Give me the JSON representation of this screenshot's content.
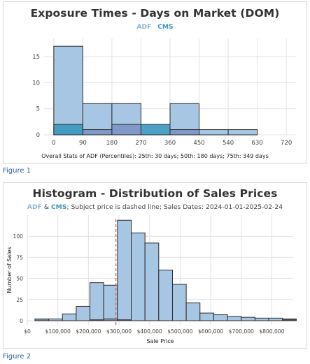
{
  "figure1": {
    "label": "Figure 1",
    "stats_text": "Overall Stats of ADF (Percentiles): 25th: 30 days; 50th: 180 days; 75th: 349 days"
  },
  "figure2": {
    "label": "Figure 2",
    "subtitle_rest": "; Subject price is dashed line; Sales Dates: 2024-01-01-2025-02-24",
    "subtitle_and": " & "
  },
  "colors": {
    "adf": "#a7c6e3",
    "cms": "#3a97bf",
    "overlap": "#7d94c4",
    "edge": "#2b2b2b",
    "grid": "#e2e2e2",
    "subject_line": "#d9534f"
  },
  "chart_data": [
    {
      "type": "bar",
      "title": "Exposure Times - Days on Market (DOM)",
      "legend": [
        "ADF",
        "CMS"
      ],
      "legend_position": "top-center",
      "xlabel": "",
      "ylabel": "",
      "xlim": [
        -30,
        750
      ],
      "ylim": [
        0,
        18.5
      ],
      "x_ticks": [
        0,
        90,
        180,
        270,
        360,
        450,
        540,
        630,
        720
      ],
      "y_ticks": [
        0,
        5,
        10,
        15
      ],
      "grid": true,
      "bin_width": 90,
      "series": [
        {
          "name": "ADF",
          "bin_starts": [
            0,
            90,
            180,
            270,
            360,
            450,
            540,
            630
          ],
          "values": [
            17,
            6,
            6,
            0,
            6,
            1,
            1,
            0
          ]
        },
        {
          "name": "CMS",
          "bin_starts": [
            0,
            90,
            180,
            270,
            360,
            450,
            540,
            630
          ],
          "values": [
            2,
            1,
            2,
            2,
            1,
            0,
            0,
            0
          ]
        }
      ]
    },
    {
      "type": "bar",
      "title": "Histogram - Distribution of Sales Prices",
      "legend": [
        "ADF",
        "CMS"
      ],
      "legend_position": "top-center",
      "xlabel": "Sale Price",
      "ylabel": "Number of Sales",
      "xlim": [
        0,
        870000
      ],
      "ylim": [
        -5,
        125
      ],
      "x_ticks": [
        0,
        100000,
        200000,
        300000,
        400000,
        500000,
        600000,
        700000,
        800000
      ],
      "x_tick_labels": [
        "$0",
        "$100,000",
        "$200,000",
        "$300,000",
        "$400,000",
        "$500,000",
        "$600,000",
        "$700,000",
        "$800,000"
      ],
      "y_ticks": [
        0,
        25,
        50,
        75,
        100
      ],
      "grid": true,
      "bin_width": 45000,
      "subject_price": 290000,
      "series": [
        {
          "name": "ADF",
          "bin_starts": [
            25000,
            70000,
            115000,
            160000,
            205000,
            250000,
            295000,
            340000,
            385000,
            430000,
            475000,
            520000,
            565000,
            610000,
            655000,
            700000,
            745000,
            790000,
            835000
          ],
          "values": [
            1,
            2,
            8,
            17,
            45,
            42,
            119,
            104,
            92,
            60,
            43,
            21,
            9,
            7,
            5,
            4,
            3,
            3,
            2
          ]
        },
        {
          "name": "CMS",
          "bin_starts": [
            25000,
            70000,
            115000,
            160000,
            205000,
            250000,
            295000,
            340000,
            385000,
            430000,
            475000,
            520000,
            565000,
            610000,
            655000,
            700000,
            745000,
            790000,
            835000
          ],
          "values": [
            2,
            0,
            0,
            0,
            1,
            2,
            1,
            0,
            0,
            0,
            0,
            0,
            0,
            0,
            0,
            0,
            0,
            0,
            1
          ]
        }
      ]
    }
  ]
}
